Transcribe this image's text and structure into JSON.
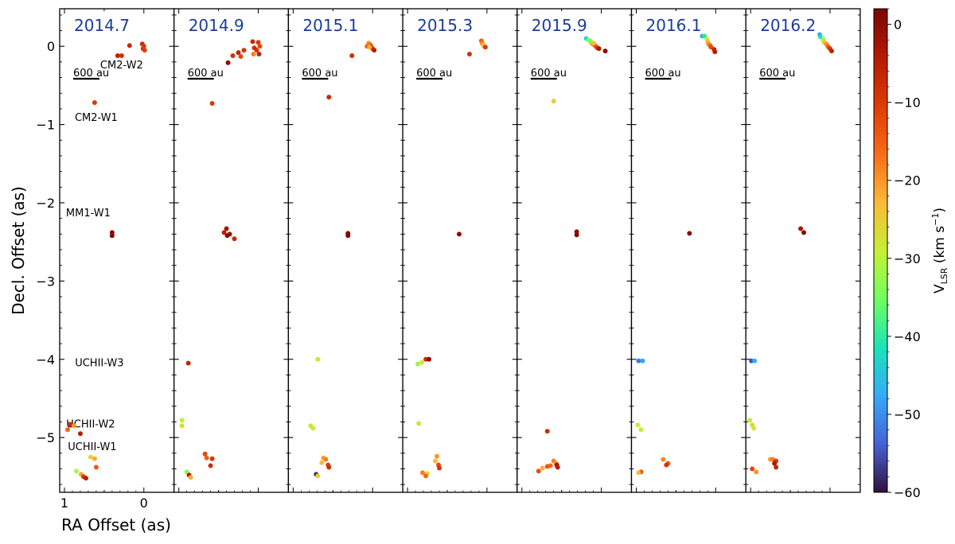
{
  "figure": {
    "xlabel": "RA Offset (as)",
    "ylabel": "Decl. Offset (as)",
    "colorbar_label": "V",
    "colorbar_sub": "LSR",
    "colorbar_unit": "(km s",
    "colorbar_unit_exp": "−1",
    "colorbar_unit_close": ")",
    "epoch_color": "#1a3d99",
    "scalebar_label": "600 au"
  },
  "chart_data": {
    "type": "scatter",
    "colormap": "turbo",
    "vlsr_range": [
      -60,
      2
    ],
    "colorbar_ticks": [
      0,
      -10,
      -20,
      -30,
      -40,
      -50,
      -60
    ],
    "ylim": [
      -5.7,
      0.48
    ],
    "yticks": [
      0,
      -1,
      -2,
      -3,
      -4,
      -5
    ],
    "ytick_labels": [
      "0",
      "−1",
      "−2",
      "−3",
      "−4",
      "−5"
    ],
    "first_panel_xticks": [
      1,
      0
    ],
    "first_panel_xtick_labels": [
      "1",
      "0"
    ],
    "panels": [
      {
        "epoch": "2014.7",
        "xlim": [
          1.06,
          -0.38
        ],
        "annotations": [
          {
            "text": "CM2-W2",
            "x": 0.28,
            "y": -0.23
          },
          {
            "text": "CM2-W1",
            "x": 0.6,
            "y": -0.9
          },
          {
            "text": "MM1-W1",
            "x": 0.7,
            "y": -2.12
          },
          {
            "text": "UCHII-W3",
            "x": 0.56,
            "y": -4.04
          },
          {
            "text": "UCHII-W2",
            "x": 0.67,
            "y": -4.82
          },
          {
            "text": "UCHII-W1",
            "x": 0.65,
            "y": -5.11
          }
        ],
        "points": [
          {
            "x": 0.02,
            "y": 0.03,
            "v": -8
          },
          {
            "x": 0.01,
            "y": -0.03,
            "v": -9
          },
          {
            "x": 0.0,
            "y": 0.0,
            "v": -10
          },
          {
            "x": -0.01,
            "y": -0.05,
            "v": -11
          },
          {
            "x": 0.18,
            "y": 0.01,
            "v": -7
          },
          {
            "x": 0.28,
            "y": -0.12,
            "v": -8
          },
          {
            "x": 0.33,
            "y": -0.12,
            "v": -6
          },
          {
            "x": 0.62,
            "y": -0.72,
            "v": -10
          },
          {
            "x": 0.4,
            "y": -2.38,
            "v": 0
          },
          {
            "x": 0.4,
            "y": -2.42,
            "v": 1
          },
          {
            "x": 0.93,
            "y": -4.83,
            "v": -8
          },
          {
            "x": 0.88,
            "y": -4.85,
            "v": -20
          },
          {
            "x": 0.96,
            "y": -4.9,
            "v": -16
          },
          {
            "x": 0.8,
            "y": -4.95,
            "v": -5
          },
          {
            "x": 0.67,
            "y": -5.25,
            "v": -26
          },
          {
            "x": 0.62,
            "y": -5.27,
            "v": -22
          },
          {
            "x": 0.6,
            "y": -5.38,
            "v": -14
          },
          {
            "x": 0.85,
            "y": -5.43,
            "v": -31
          },
          {
            "x": 0.79,
            "y": -5.47,
            "v": -21
          },
          {
            "x": 0.76,
            "y": -5.5,
            "v": -10
          },
          {
            "x": 0.73,
            "y": -5.52,
            "v": -5
          }
        ]
      },
      {
        "epoch": "2014.9",
        "xlim": [
          1.06,
          -0.38
        ],
        "annotations": [],
        "points": [
          {
            "x": 0.0,
            "y": 0.05,
            "v": -10
          },
          {
            "x": -0.02,
            "y": 0.0,
            "v": -12
          },
          {
            "x": 0.02,
            "y": -0.05,
            "v": -9
          },
          {
            "x": 0.05,
            "y": -0.02,
            "v": -8
          },
          {
            "x": -0.01,
            "y": -0.1,
            "v": -6
          },
          {
            "x": 0.07,
            "y": 0.06,
            "v": -7
          },
          {
            "x": 0.06,
            "y": -0.1,
            "v": -18
          },
          {
            "x": 0.18,
            "y": -0.05,
            "v": -9
          },
          {
            "x": 0.25,
            "y": -0.08,
            "v": -6
          },
          {
            "x": 0.32,
            "y": -0.12,
            "v": -8
          },
          {
            "x": 0.22,
            "y": -0.13,
            "v": -12
          },
          {
            "x": 0.38,
            "y": -0.21,
            "v": 0
          },
          {
            "x": 0.58,
            "y": -0.73,
            "v": -10
          },
          {
            "x": 0.4,
            "y": -2.33,
            "v": -3
          },
          {
            "x": 0.43,
            "y": -2.38,
            "v": -5
          },
          {
            "x": 0.39,
            "y": -2.42,
            "v": 0
          },
          {
            "x": 0.36,
            "y": -2.4,
            "v": -1
          },
          {
            "x": 0.3,
            "y": -2.46,
            "v": -7
          },
          {
            "x": 0.88,
            "y": -4.05,
            "v": -6
          },
          {
            "x": 0.96,
            "y": -4.78,
            "v": -30
          },
          {
            "x": 0.96,
            "y": -4.85,
            "v": -27
          },
          {
            "x": 0.67,
            "y": -5.21,
            "v": -12
          },
          {
            "x": 0.65,
            "y": -5.26,
            "v": -15
          },
          {
            "x": 0.58,
            "y": -5.27,
            "v": -10
          },
          {
            "x": 0.6,
            "y": -5.36,
            "v": -8
          },
          {
            "x": 0.9,
            "y": -5.44,
            "v": -33
          },
          {
            "x": 0.87,
            "y": -5.48,
            "v": -4
          },
          {
            "x": 0.85,
            "y": -5.51,
            "v": -22
          }
        ]
      },
      {
        "epoch": "2015.1",
        "xlim": [
          1.06,
          -0.38
        ],
        "annotations": [],
        "points": [
          {
            "x": 0.05,
            "y": 0.04,
            "v": -20
          },
          {
            "x": 0.03,
            "y": 0.02,
            "v": -17
          },
          {
            "x": 0.02,
            "y": 0.0,
            "v": -12
          },
          {
            "x": 0.0,
            "y": -0.03,
            "v": -10
          },
          {
            "x": -0.02,
            "y": -0.05,
            "v": -5
          },
          {
            "x": 0.07,
            "y": 0.0,
            "v": -15
          },
          {
            "x": 0.04,
            "y": -0.01,
            "v": -22
          },
          {
            "x": 0.26,
            "y": -0.12,
            "v": -8
          },
          {
            "x": 0.55,
            "y": -0.65,
            "v": -7
          },
          {
            "x": 0.31,
            "y": -2.39,
            "v": 0
          },
          {
            "x": 0.31,
            "y": -2.42,
            "v": 1
          },
          {
            "x": 0.69,
            "y": -4.0,
            "v": -28
          },
          {
            "x": 0.78,
            "y": -4.85,
            "v": -27
          },
          {
            "x": 0.75,
            "y": -4.88,
            "v": -30
          },
          {
            "x": 0.62,
            "y": -5.26,
            "v": -21
          },
          {
            "x": 0.59,
            "y": -5.28,
            "v": -18
          },
          {
            "x": 0.64,
            "y": -5.32,
            "v": -23
          },
          {
            "x": 0.56,
            "y": -5.35,
            "v": -11
          },
          {
            "x": 0.55,
            "y": -5.38,
            "v": -8
          },
          {
            "x": 0.71,
            "y": -5.47,
            "v": -58
          },
          {
            "x": 0.69,
            "y": -5.49,
            "v": -25
          }
        ]
      },
      {
        "epoch": "2015.3",
        "xlim": [
          1.06,
          -0.38
        ],
        "annotations": [],
        "points": [
          {
            "x": 0.07,
            "y": 0.07,
            "v": -15
          },
          {
            "x": 0.06,
            "y": 0.04,
            "v": -18
          },
          {
            "x": 0.05,
            "y": 0.02,
            "v": -21
          },
          {
            "x": 0.04,
            "y": 0.0,
            "v": -24
          },
          {
            "x": 0.02,
            "y": -0.01,
            "v": -10
          },
          {
            "x": 0.22,
            "y": -0.1,
            "v": -8
          },
          {
            "x": 0.35,
            "y": -2.4,
            "v": 0
          },
          {
            "x": 0.77,
            "y": -4.0,
            "v": -8
          },
          {
            "x": 0.73,
            "y": -4.0,
            "v": 0
          },
          {
            "x": 0.82,
            "y": -4.04,
            "v": -28
          },
          {
            "x": 0.87,
            "y": -4.06,
            "v": -32
          },
          {
            "x": 0.86,
            "y": -4.82,
            "v": -28
          },
          {
            "x": 0.63,
            "y": -5.24,
            "v": -20
          },
          {
            "x": 0.65,
            "y": -5.3,
            "v": -23
          },
          {
            "x": 0.61,
            "y": -5.35,
            "v": -12
          },
          {
            "x": 0.6,
            "y": -5.39,
            "v": -9
          },
          {
            "x": 0.81,
            "y": -5.45,
            "v": -18
          },
          {
            "x": 0.75,
            "y": -5.46,
            "v": -27
          },
          {
            "x": 0.77,
            "y": -5.49,
            "v": -16
          }
        ]
      },
      {
        "epoch": "2015.9",
        "xlim": [
          1.06,
          -0.38
        ],
        "annotations": [],
        "points": [
          {
            "x": 0.19,
            "y": 0.1,
            "v": -42
          },
          {
            "x": 0.16,
            "y": 0.08,
            "v": -33
          },
          {
            "x": 0.13,
            "y": 0.05,
            "v": -26
          },
          {
            "x": 0.11,
            "y": 0.03,
            "v": -20
          },
          {
            "x": 0.09,
            "y": 0.02,
            "v": -17
          },
          {
            "x": 0.07,
            "y": 0.0,
            "v": -14
          },
          {
            "x": 0.05,
            "y": -0.02,
            "v": -10
          },
          {
            "x": 0.03,
            "y": -0.03,
            "v": -3
          },
          {
            "x": -0.05,
            "y": -0.06,
            "v": 0
          },
          {
            "x": 0.14,
            "y": 0.07,
            "v": -35
          },
          {
            "x": 0.1,
            "y": 0.04,
            "v": -23
          },
          {
            "x": 0.6,
            "y": -0.7,
            "v": -25
          },
          {
            "x": 0.31,
            "y": -2.37,
            "v": 0
          },
          {
            "x": 0.31,
            "y": -2.41,
            "v": 1
          },
          {
            "x": 0.68,
            "y": -4.92,
            "v": -8
          },
          {
            "x": 0.6,
            "y": -5.3,
            "v": -18
          },
          {
            "x": 0.57,
            "y": -5.33,
            "v": -20
          },
          {
            "x": 0.64,
            "y": -5.36,
            "v": -16
          },
          {
            "x": 0.56,
            "y": -5.35,
            "v": -3
          },
          {
            "x": 0.55,
            "y": -5.38,
            "v": -5
          },
          {
            "x": 0.68,
            "y": -5.37,
            "v": -14
          },
          {
            "x": 0.74,
            "y": -5.39,
            "v": -22
          },
          {
            "x": 0.79,
            "y": -5.43,
            "v": -13
          }
        ]
      },
      {
        "epoch": "2016.1",
        "xlim": [
          1.06,
          -0.38
        ],
        "annotations": [],
        "points": [
          {
            "x": 0.17,
            "y": 0.13,
            "v": -47
          },
          {
            "x": 0.14,
            "y": 0.13,
            "v": -40
          },
          {
            "x": 0.11,
            "y": 0.09,
            "v": -28
          },
          {
            "x": 0.1,
            "y": 0.06,
            "v": -24
          },
          {
            "x": 0.09,
            "y": 0.03,
            "v": -20
          },
          {
            "x": 0.07,
            "y": 0.01,
            "v": -16
          },
          {
            "x": 0.06,
            "y": -0.01,
            "v": -13
          },
          {
            "x": 0.02,
            "y": -0.04,
            "v": -7
          },
          {
            "x": 0.01,
            "y": -0.07,
            "v": -5
          },
          {
            "x": 0.33,
            "y": -2.39,
            "v": 0
          },
          {
            "x": 0.97,
            "y": -4.02,
            "v": -52
          },
          {
            "x": 0.92,
            "y": -4.02,
            "v": -48
          },
          {
            "x": 0.98,
            "y": -4.84,
            "v": -28
          },
          {
            "x": 0.94,
            "y": -4.9,
            "v": -30
          },
          {
            "x": 0.66,
            "y": -5.28,
            "v": -19
          },
          {
            "x": 0.6,
            "y": -5.33,
            "v": -14
          },
          {
            "x": 0.62,
            "y": -5.35,
            "v": -9
          },
          {
            "x": 0.94,
            "y": -5.44,
            "v": -13
          },
          {
            "x": 0.97,
            "y": -5.45,
            "v": -23
          }
        ]
      },
      {
        "epoch": "2016.2",
        "xlim": [
          1.06,
          -0.38
        ],
        "annotations": [],
        "points": [
          {
            "x": 0.13,
            "y": 0.15,
            "v": -48
          },
          {
            "x": 0.12,
            "y": 0.12,
            "v": -42
          },
          {
            "x": 0.09,
            "y": 0.09,
            "v": -33
          },
          {
            "x": 0.08,
            "y": 0.06,
            "v": -27
          },
          {
            "x": 0.06,
            "y": 0.04,
            "v": -22
          },
          {
            "x": 0.04,
            "y": 0.02,
            "v": -19
          },
          {
            "x": 0.02,
            "y": -0.01,
            "v": -14
          },
          {
            "x": 0.0,
            "y": -0.03,
            "v": -10
          },
          {
            "x": -0.02,
            "y": -0.06,
            "v": -6
          },
          {
            "x": 0.37,
            "y": -2.33,
            "v": -3
          },
          {
            "x": 0.33,
            "y": -2.38,
            "v": 0
          },
          {
            "x": 0.99,
            "y": -4.02,
            "v": -55
          },
          {
            "x": 0.95,
            "y": -4.02,
            "v": -47
          },
          {
            "x": 1.01,
            "y": -4.78,
            "v": -30
          },
          {
            "x": 0.98,
            "y": -4.84,
            "v": -26
          },
          {
            "x": 0.96,
            "y": -4.88,
            "v": -28
          },
          {
            "x": 0.75,
            "y": -5.28,
            "v": -20
          },
          {
            "x": 0.72,
            "y": -5.28,
            "v": -18
          },
          {
            "x": 0.68,
            "y": -5.3,
            "v": -10
          },
          {
            "x": 0.7,
            "y": -5.33,
            "v": -4
          },
          {
            "x": 0.68,
            "y": -5.38,
            "v": -7
          },
          {
            "x": 0.98,
            "y": -5.4,
            "v": -12
          },
          {
            "x": 0.93,
            "y": -5.44,
            "v": -20
          }
        ]
      }
    ]
  }
}
